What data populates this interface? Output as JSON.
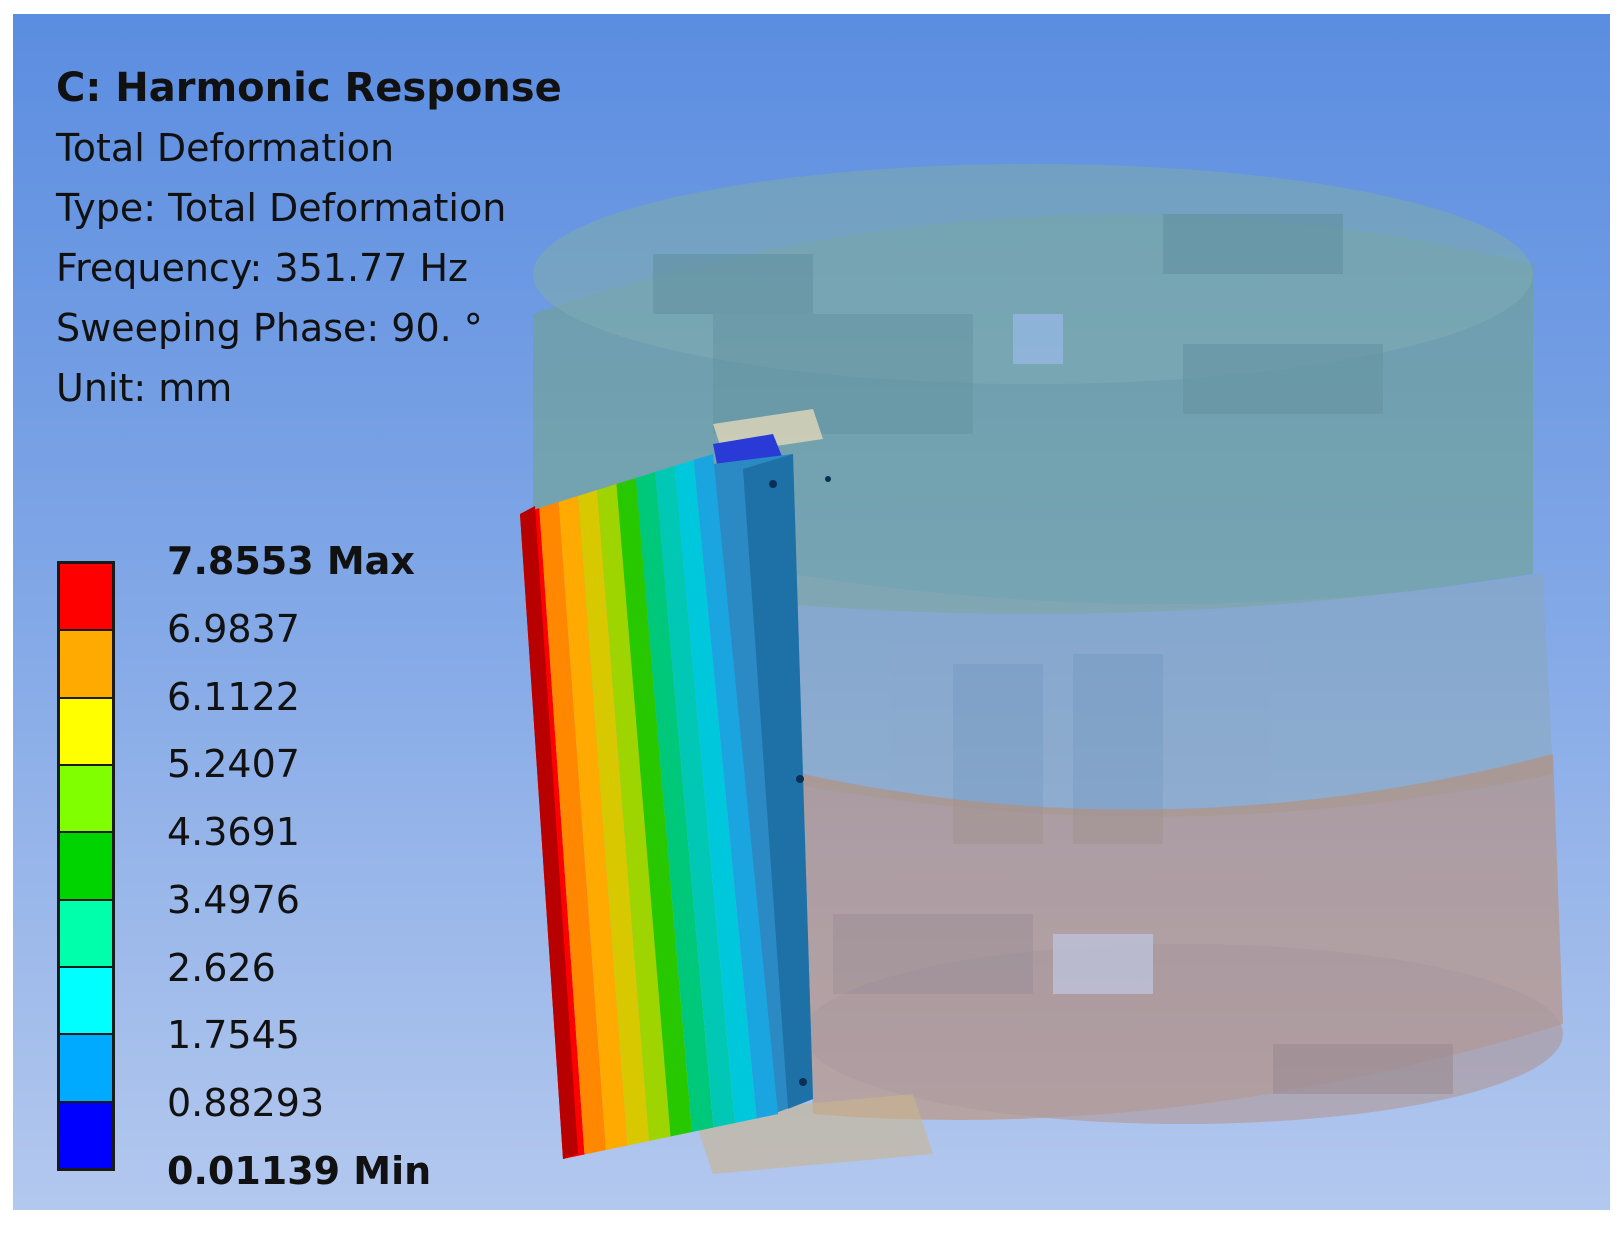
{
  "info": {
    "title": "C: Harmonic Response",
    "result_name": "Total Deformation",
    "type": "Type: Total Deformation",
    "frequency": "Frequency: 351.77 Hz",
    "sweeping_phase": "Sweeping Phase: 90. °",
    "unit": "Unit: mm"
  },
  "legend": {
    "labels": [
      "7.8553 Max",
      "6.9837",
      "6.1122",
      "5.2407",
      "4.3691",
      "3.4976",
      "2.626",
      "1.7545",
      "0.88293",
      "0.01139 Min"
    ],
    "colors": [
      "#ff0000",
      "#ffaa00",
      "#ffff00",
      "#80ff00",
      "#00d400",
      "#00ffaa",
      "#00ffff",
      "#00aaff",
      "#0000ff"
    ]
  },
  "model": {
    "plate_colors": [
      "#ff0000",
      "#ff8800",
      "#ffaa00",
      "#d8c800",
      "#9ed400",
      "#28c800",
      "#00c87a",
      "#00c8b4",
      "#00c8dc",
      "#1aa4e0"
    ],
    "upper_tank_color": "#6fa386",
    "lower_tank_color": "#c08a6a",
    "rail_color": "#2b8ac4"
  }
}
